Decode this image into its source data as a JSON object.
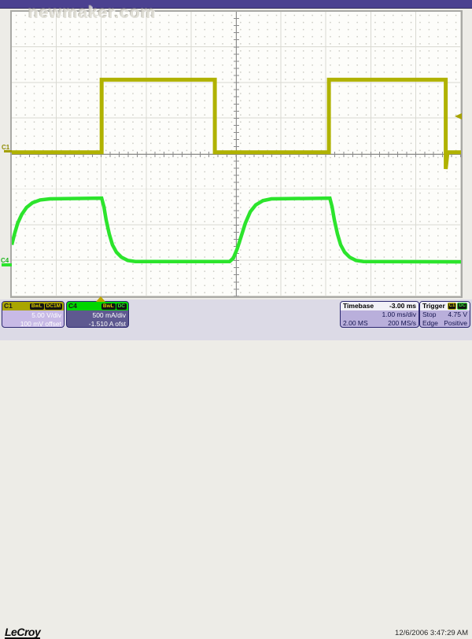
{
  "watermark": "newmaker.com",
  "channels": {
    "c1": {
      "label": "C1",
      "badges": [
        "BwL",
        "DC1M"
      ],
      "scale": "5.00 V/div",
      "offset": "100 mV offset",
      "color": "#b0b200"
    },
    "c4": {
      "label": "C4",
      "badges": [
        "BwL",
        "DC"
      ],
      "scale": "500 mA/div",
      "offset": "-1.510 A ofst",
      "color": "#2ce42c"
    }
  },
  "timebase": {
    "title": "Timebase",
    "delay": "-3.00 ms",
    "scale": "1.00 ms/div",
    "samples": "2.00 MS",
    "rate": "200 MS/s"
  },
  "trigger": {
    "title": "Trigger",
    "source_badge": "C1",
    "coupling_badge": "DC",
    "mode": "Stop",
    "level": "4.75 V",
    "type": "Edge",
    "slope": "Positive"
  },
  "footer": {
    "logo": "LeCroy",
    "datetime": "12/6/2006 3:47:29 AM"
  },
  "chart_data": {
    "type": "line",
    "title": "Oscilloscope acquisition: C1 voltage square wave, C4 current response",
    "x_axis": {
      "units": "ms",
      "per_div": 1.0,
      "divisions": 10,
      "trigger_delay_ms": -3.0
    },
    "y_axis": {
      "divisions": 8,
      "c1_per_div": "5.00 V",
      "c4_per_div": "500 mA"
    },
    "grid": "dotted graticule, solid division lines, center crosshair with minor ticks",
    "legend_position": "none",
    "series": [
      {
        "name": "C1",
        "description": "square wave ~5 ms period, ~50% duty, low at trigger-left, undershoot spike on last falling edge",
        "color": "#b0b200",
        "stroke_width": 5,
        "points_div": [
          [
            0,
            3.95
          ],
          [
            2.0,
            3.95
          ],
          [
            2.0,
            1.91
          ],
          [
            4.52,
            1.91
          ],
          [
            4.52,
            3.95
          ],
          [
            7.06,
            3.95
          ],
          [
            7.06,
            1.91
          ],
          [
            9.66,
            1.91
          ],
          [
            9.66,
            4.42
          ],
          [
            9.7,
            3.95
          ],
          [
            10,
            3.95
          ]
        ]
      },
      {
        "name": "C4",
        "description": "inverted exponential current response of C1 drive",
        "color": "#2ce42c",
        "stroke_width": 4.5,
        "points_div": [
          [
            0,
            6.55
          ],
          [
            0.06,
            6.25
          ],
          [
            0.13,
            5.95
          ],
          [
            0.22,
            5.7
          ],
          [
            0.33,
            5.5
          ],
          [
            0.46,
            5.37
          ],
          [
            0.63,
            5.29
          ],
          [
            0.85,
            5.26
          ],
          [
            2.0,
            5.24
          ],
          [
            2.05,
            5.48
          ],
          [
            2.1,
            5.85
          ],
          [
            2.17,
            6.25
          ],
          [
            2.24,
            6.55
          ],
          [
            2.33,
            6.76
          ],
          [
            2.44,
            6.9
          ],
          [
            2.58,
            6.99
          ],
          [
            2.75,
            7.02
          ],
          [
            4.85,
            7.02
          ],
          [
            4.93,
            6.93
          ],
          [
            5.02,
            6.66
          ],
          [
            5.11,
            6.3
          ],
          [
            5.2,
            5.94
          ],
          [
            5.31,
            5.62
          ],
          [
            5.43,
            5.43
          ],
          [
            5.59,
            5.31
          ],
          [
            5.78,
            5.26
          ],
          [
            7.08,
            5.24
          ],
          [
            7.13,
            5.48
          ],
          [
            7.18,
            5.85
          ],
          [
            7.25,
            6.25
          ],
          [
            7.32,
            6.55
          ],
          [
            7.41,
            6.76
          ],
          [
            7.52,
            6.9
          ],
          [
            7.66,
            6.99
          ],
          [
            7.83,
            7.02
          ],
          [
            10,
            7.03
          ]
        ]
      }
    ],
    "markers": {
      "c1_zero_div": 3.93,
      "c4_zero_div": 7.12,
      "trigger_level_div": 2.95,
      "trigger_time_div": 2.0
    }
  }
}
